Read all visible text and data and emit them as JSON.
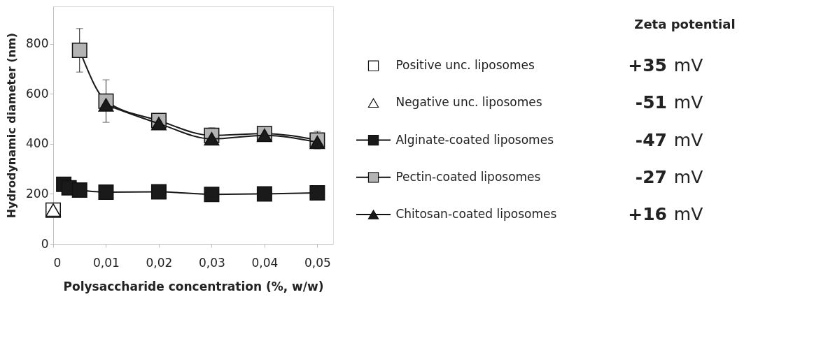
{
  "chart_data": {
    "type": "line",
    "xlabel": "Polysaccharide concentration (%, w/w)",
    "ylabel": "Hydrodynamic diameter (nm)",
    "legend": "right",
    "legend_title": "Zeta potential",
    "grid": false,
    "line_style": "solid",
    "xlim": [
      0,
      0.053
    ],
    "xticks": [
      0,
      {
        "value": 0.01,
        "label": "0,01"
      },
      {
        "value": 0.02,
        "label": "0,02"
      },
      {
        "value": 0.03,
        "label": "0,03"
      },
      {
        "value": 0.04,
        "label": "0,04"
      },
      {
        "value": 0.05,
        "label": "0,05"
      }
    ],
    "ylim": [
      0,
      950
    ],
    "yticks": [
      0,
      200,
      400,
      600,
      800
    ],
    "series": [
      {
        "name": "Positive unc. liposomes",
        "type": "scatter",
        "marker": "square",
        "color": "#ffffff",
        "x": [
          0
        ],
        "values": [
          135
        ]
      },
      {
        "name": "Negative unc. liposomes",
        "type": "scatter",
        "marker": "triangle",
        "color": "#ffffff",
        "x": [
          0
        ],
        "values": [
          135
        ]
      },
      {
        "name": "Alginate-coated liposomes",
        "marker": "square",
        "color": "#1a1a1a",
        "x": [
          0.002,
          0.003,
          0.005,
          0.01,
          0.02,
          0.03,
          0.04,
          0.05
        ],
        "values": [
          238,
          224,
          215,
          207,
          208,
          198,
          200,
          204
        ]
      },
      {
        "name": "Pectin-coated liposomes",
        "marker": "square",
        "color": "#b3b3b3",
        "x": [
          0.005,
          0.01,
          0.02,
          0.03,
          0.04,
          0.05
        ],
        "values": [
          774,
          571,
          493,
          434,
          441,
          415
        ],
        "errors": [
          87,
          85,
          20,
          30,
          null,
          35
        ]
      },
      {
        "name": "Chitosan-coated liposomes",
        "marker": "triangle",
        "color": "#1a1a1a",
        "x": [
          0.01,
          0.02,
          0.03,
          0.04,
          0.05
        ],
        "values": [
          556,
          481,
          420,
          434,
          406
        ]
      }
    ],
    "annotations": [
      "+35 mV",
      "-51 mV",
      "-47 mV",
      "-27 mV",
      "+16 mV"
    ]
  }
}
